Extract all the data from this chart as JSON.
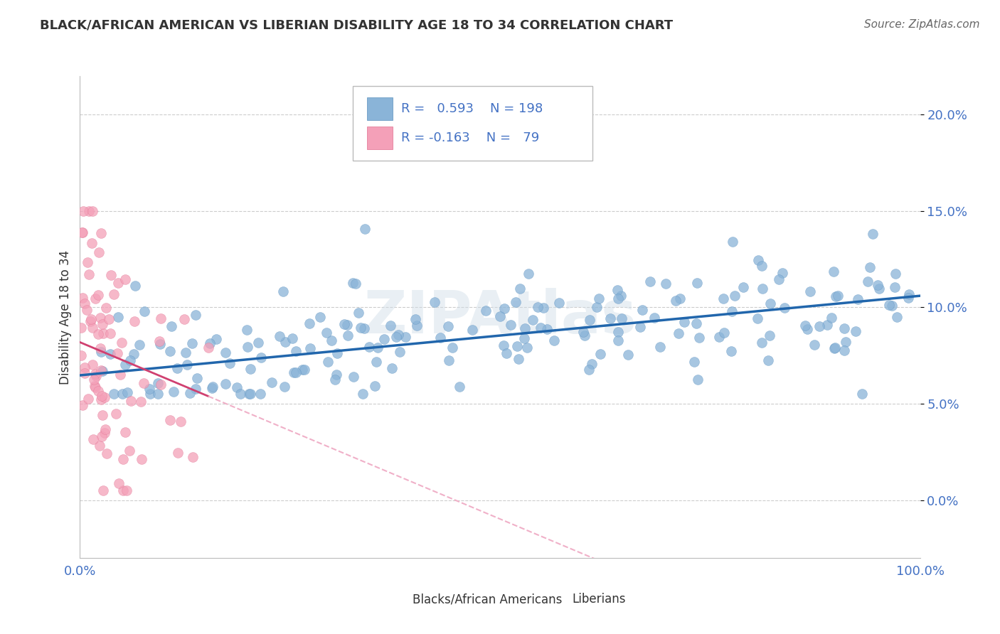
{
  "title": "BLACK/AFRICAN AMERICAN VS LIBERIAN DISABILITY AGE 18 TO 34 CORRELATION CHART",
  "source": "Source: ZipAtlas.com",
  "ylabel": "Disability Age 18 to 34",
  "xlim": [
    0,
    100
  ],
  "ylim": [
    -3,
    22
  ],
  "yticks": [
    0,
    5,
    10,
    15,
    20
  ],
  "ytick_labels": [
    "0.0%",
    "5.0%",
    "10.0%",
    "15.0%",
    "20.0%"
  ],
  "xticks": [
    0,
    100
  ],
  "xtick_labels": [
    "0.0%",
    "100.0%"
  ],
  "blue_color": "#8ab4d8",
  "blue_edge_color": "#5a90be",
  "blue_line_color": "#2166ac",
  "pink_color": "#f4a0b8",
  "pink_edge_color": "#e07090",
  "pink_line_color": "#d04070",
  "pink_line_dash_color": "#f0b0c8",
  "r_blue": 0.593,
  "n_blue": 198,
  "r_pink": -0.163,
  "n_pink": 79,
  "watermark": "ZIPAtlas",
  "background_color": "#ffffff",
  "grid_color": "#cccccc",
  "title_color": "#333333",
  "axis_label_color": "#4472c4",
  "legend_label_blue": "Blacks/African Americans",
  "legend_label_pink": "Liberians",
  "seed_blue": 42,
  "seed_pink": 7
}
